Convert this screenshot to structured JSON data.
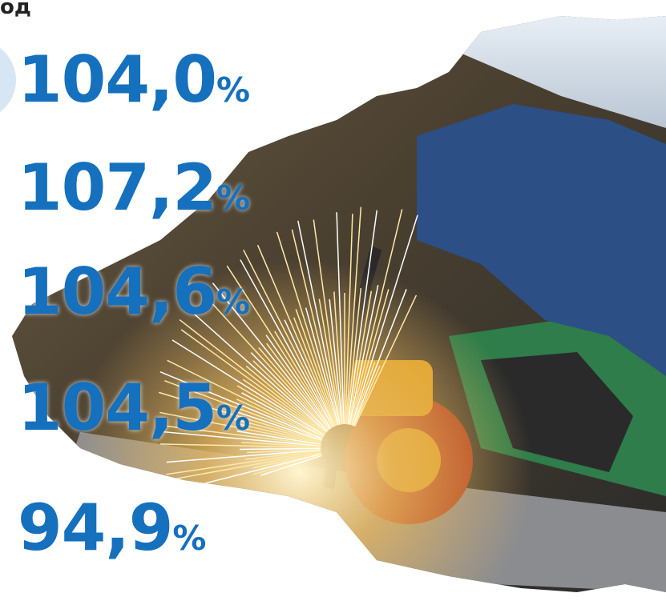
{
  "header": {
    "title": "од"
  },
  "items": [
    {
      "value": "104,0",
      "unit": "%"
    },
    {
      "value": "107,2",
      "unit": "%"
    },
    {
      "value": "104,6",
      "unit": "%"
    },
    {
      "value": "104,5",
      "unit": "%"
    },
    {
      "value": "94,9",
      "unit": "%"
    }
  ]
}
